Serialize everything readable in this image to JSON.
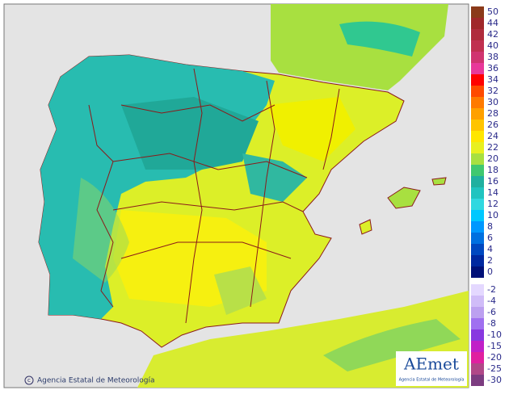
{
  "map": {
    "credit": "Agencia Estatal de Meteorología",
    "logo": {
      "name": "AEmet",
      "subtitle": "Agencia Estatal de Meteorología"
    }
  },
  "legend": {
    "warm": [
      {
        "label": 50,
        "color": "#8b3a1a"
      },
      {
        "label": 44,
        "color": "#a0282a"
      },
      {
        "label": 42,
        "color": "#b02c3c"
      },
      {
        "label": 40,
        "color": "#c03050"
      },
      {
        "label": 38,
        "color": "#d03470"
      },
      {
        "label": 36,
        "color": "#e8389a"
      },
      {
        "label": 34,
        "color": "#ff0000"
      },
      {
        "label": 32,
        "color": "#ff4a00"
      },
      {
        "label": 30,
        "color": "#ff7a00"
      },
      {
        "label": 28,
        "color": "#ffa000"
      },
      {
        "label": 26,
        "color": "#ffc400"
      },
      {
        "label": 24,
        "color": "#ffe600"
      },
      {
        "label": 22,
        "color": "#e8f020"
      },
      {
        "label": 20,
        "color": "#a8e040"
      },
      {
        "label": 18,
        "color": "#40c870"
      },
      {
        "label": 16,
        "color": "#20b0a0"
      },
      {
        "label": 14,
        "color": "#20c4c0"
      },
      {
        "label": 12,
        "color": "#30d8e0"
      },
      {
        "label": 10,
        "color": "#00c8ff"
      },
      {
        "label": 8,
        "color": "#0098ff"
      },
      {
        "label": 6,
        "color": "#0070e0"
      },
      {
        "label": 4,
        "color": "#0048c0"
      },
      {
        "label": 2,
        "color": "#0028a0"
      },
      {
        "label": 0,
        "color": "#001078"
      }
    ],
    "cold": [
      {
        "label": -2,
        "color": "#e4d8ff"
      },
      {
        "label": -4,
        "color": "#d0bcf8"
      },
      {
        "label": -6,
        "color": "#bca0f0"
      },
      {
        "label": -8,
        "color": "#a070f0"
      },
      {
        "label": -10,
        "color": "#8838e0"
      },
      {
        "label": -15,
        "color": "#c020c8"
      },
      {
        "label": -20,
        "color": "#e020a0"
      },
      {
        "label": -25,
        "color": "#b04888"
      },
      {
        "label": -30,
        "color": "#7c3c80"
      }
    ]
  }
}
